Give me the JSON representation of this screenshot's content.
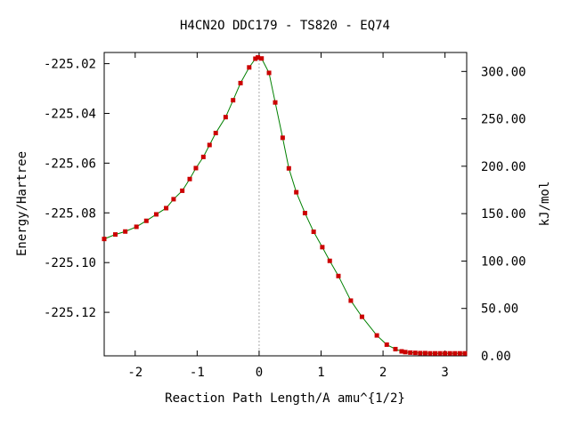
{
  "chart_data": {
    "type": "line",
    "title": "H4CN2O   DDC179 - TS820 - EQ74",
    "xlabel": "Reaction Path Length/A amu^{1/2}",
    "ylabel": "Energy/Hartree",
    "y2label": "kJ/mol",
    "xlim": [
      -2.5,
      3.35
    ],
    "ylim": [
      -225.1375,
      -225.0155
    ],
    "y2lim": [
      0,
      320
    ],
    "grid": false,
    "legend": "none",
    "x_ticks": [
      -2,
      -1,
      0,
      1,
      2,
      3
    ],
    "x_tick_labels": [
      "-2",
      "-1",
      "0",
      "1",
      "2",
      "3"
    ],
    "y_ticks": [
      -225.02,
      -225.04,
      -225.06,
      -225.08,
      -225.1,
      -225.12
    ],
    "y_tick_labels": [
      "-225.02",
      "-225.04",
      "-225.06",
      "-225.08",
      "-225.10",
      "-225.12"
    ],
    "y2_ticks": [
      300,
      250,
      200,
      150,
      100,
      50,
      0
    ],
    "y2_tick_labels": [
      "300.00",
      "250.00",
      "200.00",
      "150.00",
      "100.00",
      "50.00",
      "0.00"
    ],
    "ts_marker_x": 0,
    "colors": {
      "line": "#008000",
      "marker": "#cc0000",
      "ts_marker": "#aaaaaa"
    },
    "series": [
      {
        "x": [
          -2.5,
          -2.32,
          -2.16,
          -1.98,
          -1.82,
          -1.66,
          -1.5,
          -1.38,
          -1.24,
          -1.12,
          -1.02,
          -0.9,
          -0.8,
          -0.7,
          -0.54,
          -0.42,
          -0.3,
          -0.16,
          -0.06,
          -0.02,
          0.04,
          0.16,
          0.26,
          0.38,
          0.48,
          0.6,
          0.74,
          0.88,
          1.02,
          1.14,
          1.28,
          1.48,
          1.66,
          1.9,
          2.06,
          2.2,
          2.3,
          2.36,
          2.44,
          2.52,
          2.6,
          2.68,
          2.76,
          2.84,
          2.92,
          3.0,
          3.08,
          3.16,
          3.24,
          3.32
        ],
        "y": [
          -225.0905,
          -225.0887,
          -225.0875,
          -225.0856,
          -225.0832,
          -225.0806,
          -225.0781,
          -225.0745,
          -225.0711,
          -225.0664,
          -225.062,
          -225.0575,
          -225.0527,
          -225.0479,
          -225.0415,
          -225.0347,
          -225.0278,
          -225.0215,
          -225.018,
          -225.0175,
          -225.0179,
          -225.0237,
          -225.0356,
          -225.0498,
          -225.0621,
          -225.0717,
          -225.0801,
          -225.0876,
          -225.0938,
          -225.0993,
          -225.1054,
          -225.1153,
          -225.1218,
          -225.1293,
          -225.133,
          -225.1348,
          -225.1357,
          -225.136,
          -225.1362,
          -225.1363,
          -225.1364,
          -225.1364,
          -225.1365,
          -225.1365,
          -225.1365,
          -225.1365,
          -225.1365,
          -225.1365,
          -225.1365,
          -225.1365
        ]
      }
    ]
  }
}
